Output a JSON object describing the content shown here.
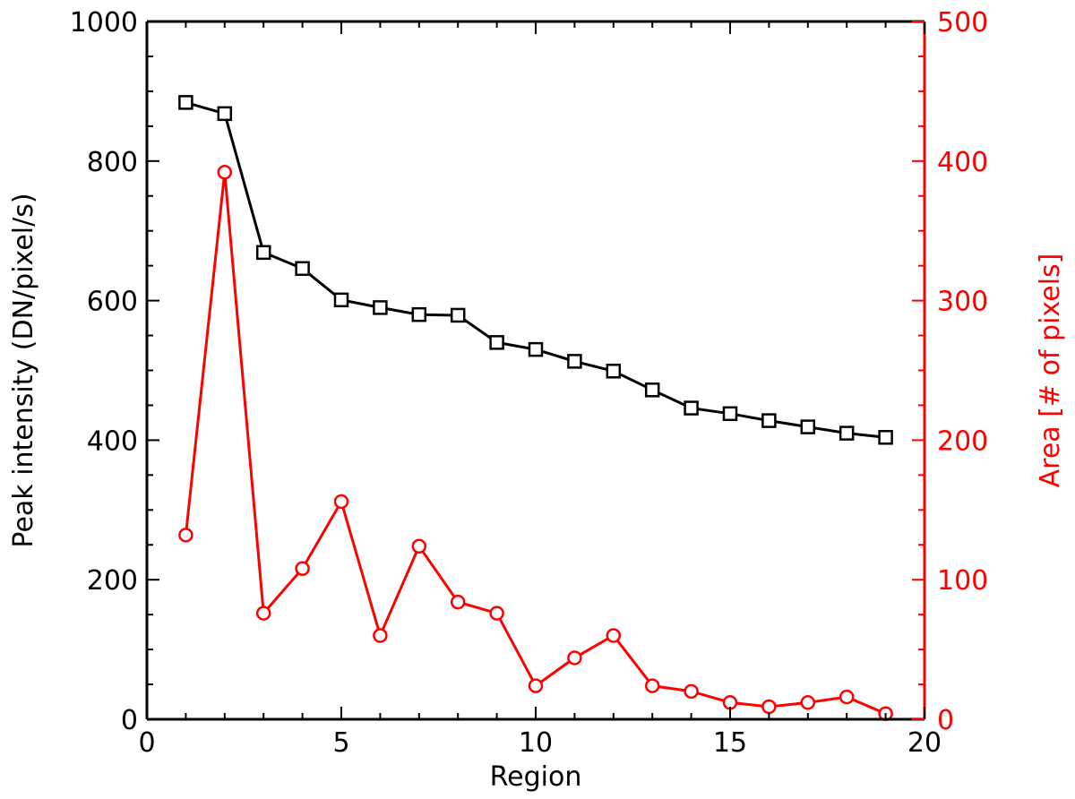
{
  "chart_data": {
    "type": "line",
    "title": "",
    "xlabel": "Region",
    "ylabel_left": "Peak intensity (DN/pixel/s)",
    "ylabel_right": "Area [# of pixels]",
    "xlim": [
      0,
      20
    ],
    "ylim_left": [
      0,
      1000
    ],
    "ylim_right": [
      0,
      500
    ],
    "x_ticks": [
      0,
      5,
      10,
      15,
      20
    ],
    "y_left_ticks": [
      0,
      200,
      400,
      600,
      800,
      1000
    ],
    "y_right_ticks": [
      0,
      100,
      200,
      300,
      400,
      500
    ],
    "grid": false,
    "legend": "none",
    "x": [
      1,
      2,
      3,
      4,
      5,
      6,
      7,
      8,
      9,
      10,
      11,
      12,
      13,
      14,
      15,
      16,
      17,
      18,
      19
    ],
    "series": [
      {
        "axis": "left",
        "color": "#000000",
        "marker": "square",
        "values": [
          884,
          868,
          669,
          646,
          601,
          590,
          580,
          579,
          540,
          530,
          513,
          499,
          472,
          446,
          438,
          428,
          419,
          410,
          404
        ]
      },
      {
        "axis": "right",
        "color": "#ff0000",
        "marker": "circle",
        "values": [
          132,
          392,
          76,
          108,
          156,
          60,
          124,
          84,
          76,
          24,
          44,
          60,
          24,
          20,
          12,
          9,
          12,
          16,
          4
        ]
      }
    ]
  }
}
